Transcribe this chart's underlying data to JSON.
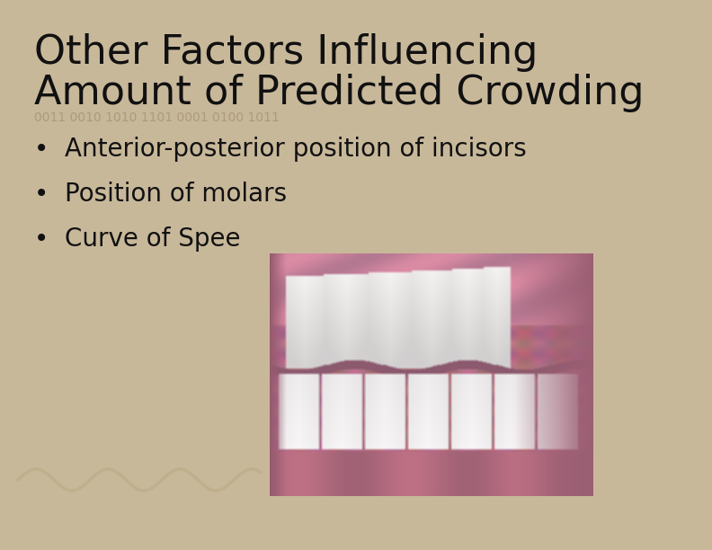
{
  "title_line1": "Other Factors Influencing",
  "title_line2": "Amount of Predicted Crowding",
  "binary_text": "0011 0010 1010 1101 0001 0100 1011",
  "bullet_points": [
    "Anterior-posterior position of incisors",
    "Position of molars",
    "Curve of Spee"
  ],
  "bg_color": "#c8b89a",
  "title_color": "#111111",
  "bullet_color": "#111111",
  "binary_color": "#a89878",
  "title_fontsize": 32,
  "bullet_fontsize": 20,
  "binary_fontsize": 10,
  "wave_color": "#b8a882",
  "wave_alpha": 0.55
}
